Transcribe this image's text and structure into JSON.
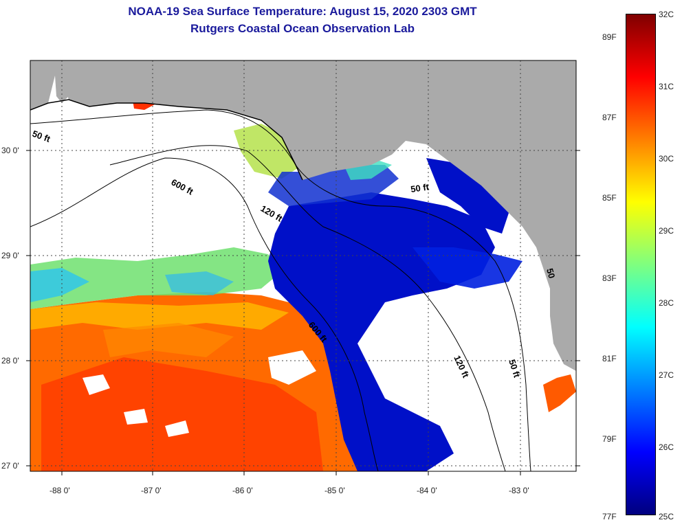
{
  "title": {
    "line1": "NOAA-19 Sea Surface Temperature:  August 15, 2020 2303 GMT",
    "line2": "Rutgers Coastal Ocean Observation Lab"
  },
  "map": {
    "lat_ticks": [
      "30 0'",
      "29 0'",
      "28 0'",
      "27 0'"
    ],
    "lon_ticks": [
      "-88 0'",
      "-87 0'",
      "-86 0'",
      "-85 0'",
      "-84 0'",
      "-83 0'"
    ],
    "contour_labels": [
      "50 ft",
      "600 ft",
      "120 ft",
      "50 ft",
      "600 ft",
      "120 ft",
      "50 ft",
      "50"
    ]
  },
  "colorbar": {
    "celsius": [
      "32C",
      "31C",
      "30C",
      "29C",
      "28C",
      "27C",
      "26C",
      "25C"
    ],
    "fahrenheit": [
      "89F",
      "87F",
      "85F",
      "83F",
      "81F",
      "79F",
      "77F"
    ],
    "colors": [
      "#00007f",
      "#0000ff",
      "#007fff",
      "#00ffff",
      "#7fff7f",
      "#ffff00",
      "#ff7f00",
      "#ff0000",
      "#7f0000"
    ]
  },
  "colors": {
    "land": "#aaaaaa",
    "cloud": "#ffffff",
    "title": "#1a1a9c"
  }
}
